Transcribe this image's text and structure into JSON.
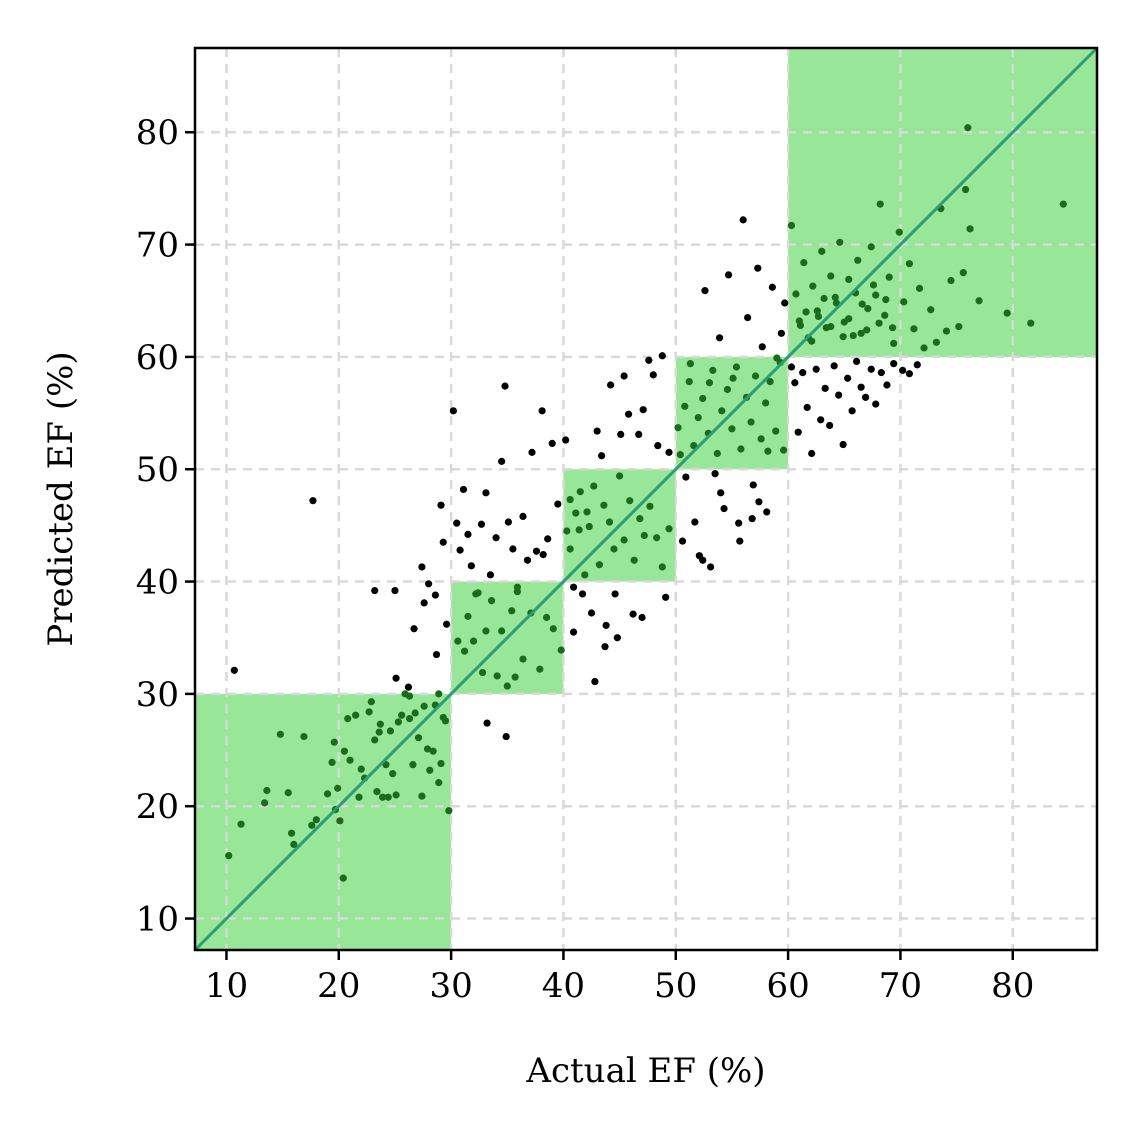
{
  "chart_data": {
    "type": "scatter",
    "xlabel": "Actual EF (%)",
    "ylabel": "Predicted EF (%)",
    "xlim": [
      7.2,
      87.5
    ],
    "ylim": [
      7.2,
      87.5
    ],
    "xticks": [
      10,
      20,
      30,
      40,
      50,
      60,
      70,
      80
    ],
    "yticks": [
      10,
      20,
      30,
      40,
      50,
      60,
      70,
      80
    ],
    "grid": true,
    "identity_line": {
      "color": "#2a9d78"
    },
    "regions": [
      {
        "x0": 7.2,
        "x1": 30,
        "y0": 7.2,
        "y1": 30
      },
      {
        "x0": 30,
        "x1": 40,
        "y0": 30,
        "y1": 40
      },
      {
        "x0": 40,
        "x1": 50,
        "y0": 40,
        "y1": 50
      },
      {
        "x0": 50,
        "x1": 60,
        "y0": 50,
        "y1": 60
      },
      {
        "x0": 60,
        "x1": 87.5,
        "y0": 60,
        "y1": 87.5
      }
    ],
    "colors": {
      "region_fill": "#98e698",
      "point_inside": "#1a6b1a",
      "point_outside": "#000000",
      "grid": "#d9d9d9",
      "identity": "#2a9d78"
    },
    "points": [
      [
        10.2,
        15.6
      ],
      [
        10.7,
        32.1
      ],
      [
        11.3,
        18.4
      ],
      [
        13.4,
        20.3
      ],
      [
        13.6,
        21.4
      ],
      [
        14.8,
        26.4
      ],
      [
        15.5,
        21.2
      ],
      [
        15.8,
        17.6
      ],
      [
        16.0,
        16.6
      ],
      [
        16.9,
        26.2
      ],
      [
        17.6,
        18.3
      ],
      [
        17.7,
        47.2
      ],
      [
        18.0,
        18.8
      ],
      [
        19.0,
        21.1
      ],
      [
        19.4,
        23.9
      ],
      [
        19.6,
        25.7
      ],
      [
        19.7,
        19.7
      ],
      [
        19.9,
        21.6
      ],
      [
        20.1,
        18.7
      ],
      [
        20.4,
        13.6
      ],
      [
        20.5,
        24.9
      ],
      [
        20.8,
        27.8
      ],
      [
        21.0,
        24.1
      ],
      [
        21.5,
        28.1
      ],
      [
        21.8,
        20.8
      ],
      [
        22.0,
        23.3
      ],
      [
        22.3,
        22.5
      ],
      [
        22.7,
        28.4
      ],
      [
        22.9,
        29.3
      ],
      [
        23.2,
        25.9
      ],
      [
        23.4,
        21.3
      ],
      [
        23.6,
        26.6
      ],
      [
        23.7,
        27.3
      ],
      [
        23.9,
        20.8
      ],
      [
        24.2,
        23.7
      ],
      [
        24.4,
        20.8
      ],
      [
        24.6,
        26.7
      ],
      [
        24.8,
        22.9
      ],
      [
        25.1,
        21.0
      ],
      [
        25.3,
        27.5
      ],
      [
        25.6,
        28.1
      ],
      [
        25.9,
        30.0
      ],
      [
        26.2,
        30.6
      ],
      [
        26.3,
        27.8
      ],
      [
        26.6,
        23.7
      ],
      [
        26.8,
        28.3
      ],
      [
        27.1,
        26.1
      ],
      [
        27.4,
        20.9
      ],
      [
        27.6,
        28.9
      ],
      [
        27.9,
        25.1
      ],
      [
        28.1,
        23.2
      ],
      [
        28.4,
        24.9
      ],
      [
        28.6,
        29.0
      ],
      [
        28.9,
        22.1
      ],
      [
        29.1,
        23.8
      ],
      [
        29.5,
        27.6
      ],
      [
        29.8,
        19.6
      ],
      [
        23.2,
        39.2
      ],
      [
        25.0,
        39.2
      ],
      [
        25.1,
        31.4
      ],
      [
        26.3,
        29.8
      ],
      [
        26.7,
        35.8
      ],
      [
        27.4,
        41.3
      ],
      [
        27.6,
        38.1
      ],
      [
        28.0,
        39.8
      ],
      [
        28.6,
        38.8
      ],
      [
        29.1,
        46.8
      ],
      [
        29.3,
        43.5
      ],
      [
        29.6,
        36.2
      ],
      [
        30.2,
        55.2
      ],
      [
        30.5,
        45.2
      ],
      [
        30.8,
        42.8
      ],
      [
        31.1,
        48.2
      ],
      [
        31.5,
        44.2
      ],
      [
        31.8,
        41.4
      ],
      [
        32.2,
        38.9
      ],
      [
        32.7,
        45.1
      ],
      [
        33.1,
        47.9
      ],
      [
        33.5,
        40.6
      ],
      [
        34.0,
        43.9
      ],
      [
        34.5,
        50.7
      ],
      [
        34.8,
        57.4
      ],
      [
        35.1,
        45.3
      ],
      [
        35.5,
        42.9
      ],
      [
        35.9,
        39.1
      ],
      [
        36.4,
        45.8
      ],
      [
        36.8,
        41.9
      ],
      [
        37.2,
        51.5
      ],
      [
        37.6,
        42.7
      ],
      [
        38.1,
        55.2
      ],
      [
        38.6,
        43.8
      ],
      [
        39.0,
        52.3
      ],
      [
        39.5,
        46.9
      ],
      [
        28.7,
        33.5
      ],
      [
        28.9,
        30.0
      ],
      [
        29.3,
        27.9
      ],
      [
        30.6,
        34.7
      ],
      [
        31.2,
        33.8
      ],
      [
        31.5,
        36.9
      ],
      [
        32.0,
        34.7
      ],
      [
        32.4,
        39.0
      ],
      [
        32.8,
        31.9
      ],
      [
        33.1,
        35.6
      ],
      [
        33.6,
        38.3
      ],
      [
        34.1,
        31.6
      ],
      [
        34.5,
        35.6
      ],
      [
        35.0,
        30.7
      ],
      [
        35.4,
        37.4
      ],
      [
        35.9,
        39.5
      ],
      [
        36.4,
        33.1
      ],
      [
        37.1,
        37.2
      ],
      [
        37.9,
        32.2
      ],
      [
        38.5,
        36.8
      ],
      [
        39.1,
        35.8
      ],
      [
        34.9,
        26.2
      ],
      [
        33.2,
        27.4
      ],
      [
        35.7,
        31.5
      ],
      [
        38.2,
        42.4
      ],
      [
        40.2,
        52.6
      ],
      [
        40.6,
        47.3
      ],
      [
        40.9,
        39.5
      ],
      [
        41.4,
        44.6
      ],
      [
        41.7,
        38.9
      ],
      [
        42.1,
        46.2
      ],
      [
        42.5,
        37.2
      ],
      [
        43.0,
        53.4
      ],
      [
        43.4,
        51.2
      ],
      [
        43.8,
        36.1
      ],
      [
        44.2,
        57.5
      ],
      [
        44.6,
        38.9
      ],
      [
        45.1,
        53.1
      ],
      [
        45.4,
        58.3
      ],
      [
        45.8,
        54.9
      ],
      [
        46.2,
        37.1
      ],
      [
        46.7,
        53.1
      ],
      [
        47.1,
        55.3
      ],
      [
        47.6,
        59.7
      ],
      [
        48.0,
        58.4
      ],
      [
        48.4,
        52.1
      ],
      [
        48.8,
        60.1
      ],
      [
        49.1,
        38.6
      ],
      [
        49.4,
        51.5
      ],
      [
        40.3,
        44.5
      ],
      [
        40.6,
        42.9
      ],
      [
        41.1,
        46.1
      ],
      [
        41.5,
        48.0
      ],
      [
        41.9,
        40.6
      ],
      [
        42.3,
        44.9
      ],
      [
        42.7,
        48.5
      ],
      [
        43.2,
        41.5
      ],
      [
        43.6,
        46.8
      ],
      [
        44.1,
        45.3
      ],
      [
        44.5,
        42.9
      ],
      [
        45.0,
        49.4
      ],
      [
        45.4,
        43.7
      ],
      [
        45.9,
        47.2
      ],
      [
        46.3,
        41.9
      ],
      [
        46.8,
        45.6
      ],
      [
        47.2,
        44.1
      ],
      [
        47.7,
        46.7
      ],
      [
        48.3,
        43.9
      ],
      [
        48.8,
        41.3
      ],
      [
        49.4,
        44.7
      ],
      [
        42.8,
        31.1
      ],
      [
        43.7,
        34.2
      ],
      [
        44.8,
        35.0
      ],
      [
        47.0,
        36.8
      ],
      [
        39.8,
        33.9
      ],
      [
        40.9,
        35.5
      ],
      [
        50.2,
        53.7
      ],
      [
        50.6,
        43.6
      ],
      [
        50.9,
        49.3
      ],
      [
        51.3,
        59.4
      ],
      [
        51.7,
        45.3
      ],
      [
        52.1,
        42.3
      ],
      [
        52.6,
        65.9
      ],
      [
        53.0,
        57.7
      ],
      [
        53.5,
        49.6
      ],
      [
        53.9,
        61.7
      ],
      [
        54.3,
        46.5
      ],
      [
        54.7,
        67.3
      ],
      [
        55.1,
        58.1
      ],
      [
        55.6,
        45.2
      ],
      [
        56.0,
        72.2
      ],
      [
        56.4,
        63.5
      ],
      [
        56.9,
        48.6
      ],
      [
        57.3,
        67.9
      ],
      [
        57.7,
        60.9
      ],
      [
        58.1,
        46.2
      ],
      [
        58.6,
        66.2
      ],
      [
        59.0,
        59.9
      ],
      [
        59.4,
        62.1
      ],
      [
        59.7,
        64.8
      ],
      [
        52.4,
        41.9
      ],
      [
        53.1,
        41.3
      ],
      [
        54.0,
        47.9
      ],
      [
        55.7,
        43.6
      ],
      [
        56.8,
        45.6
      ],
      [
        57.4,
        47.1
      ],
      [
        58.2,
        51.6
      ],
      [
        50.4,
        51.3
      ],
      [
        50.8,
        55.6
      ],
      [
        51.2,
        57.8
      ],
      [
        51.6,
        52.1
      ],
      [
        52.0,
        54.6
      ],
      [
        52.4,
        56.3
      ],
      [
        52.9,
        53.2
      ],
      [
        53.3,
        58.8
      ],
      [
        53.7,
        51.4
      ],
      [
        54.1,
        55.2
      ],
      [
        54.6,
        57.1
      ],
      [
        55.0,
        53.6
      ],
      [
        55.4,
        59.1
      ],
      [
        55.8,
        51.8
      ],
      [
        56.3,
        56.4
      ],
      [
        56.7,
        54.2
      ],
      [
        57.1,
        58.3
      ],
      [
        57.6,
        52.7
      ],
      [
        58.0,
        55.9
      ],
      [
        58.4,
        57.8
      ],
      [
        58.9,
        53.4
      ],
      [
        59.3,
        59.5
      ],
      [
        59.6,
        51.7
      ],
      [
        60.3,
        59.1
      ],
      [
        60.6,
        57.7
      ],
      [
        60.9,
        53.3
      ],
      [
        61.3,
        58.6
      ],
      [
        61.7,
        55.5
      ],
      [
        62.1,
        51.4
      ],
      [
        62.5,
        58.9
      ],
      [
        62.9,
        54.4
      ],
      [
        63.3,
        57.2
      ],
      [
        63.7,
        53.9
      ],
      [
        64.1,
        59.2
      ],
      [
        64.5,
        56.6
      ],
      [
        64.9,
        52.2
      ],
      [
        65.3,
        58.1
      ],
      [
        65.7,
        55.2
      ],
      [
        66.1,
        59.6
      ],
      [
        66.5,
        57.3
      ],
      [
        66.9,
        56.4
      ],
      [
        67.4,
        58.9
      ],
      [
        67.8,
        55.8
      ],
      [
        68.3,
        58.6
      ],
      [
        68.8,
        57.5
      ],
      [
        69.4,
        59.4
      ],
      [
        70.2,
        58.8
      ],
      [
        70.8,
        58.5
      ],
      [
        71.5,
        59.3
      ],
      [
        60.3,
        71.7
      ],
      [
        60.7,
        65.6
      ],
      [
        61.0,
        63.2
      ],
      [
        61.4,
        68.4
      ],
      [
        61.8,
        61.7
      ],
      [
        62.2,
        66.3
      ],
      [
        62.6,
        64.1
      ],
      [
        63.0,
        69.4
      ],
      [
        63.4,
        62.6
      ],
      [
        63.8,
        67.2
      ],
      [
        64.2,
        65.3
      ],
      [
        64.6,
        70.2
      ],
      [
        65.0,
        63.1
      ],
      [
        65.4,
        66.9
      ],
      [
        65.8,
        61.9
      ],
      [
        66.2,
        68.6
      ],
      [
        66.6,
        64.7
      ],
      [
        67.0,
        62.4
      ],
      [
        67.4,
        69.8
      ],
      [
        67.8,
        65.5
      ],
      [
        68.2,
        73.6
      ],
      [
        68.6,
        63.7
      ],
      [
        69.0,
        67.1
      ],
      [
        69.4,
        61.2
      ],
      [
        69.9,
        71.1
      ],
      [
        70.3,
        64.9
      ],
      [
        70.8,
        68.3
      ],
      [
        71.2,
        62.5
      ],
      [
        71.7,
        66.1
      ],
      [
        72.1,
        60.8
      ],
      [
        72.7,
        64.2
      ],
      [
        73.2,
        61.3
      ],
      [
        73.6,
        73.2
      ],
      [
        74.1,
        62.3
      ],
      [
        74.5,
        66.8
      ],
      [
        75.2,
        62.7
      ],
      [
        75.6,
        67.5
      ],
      [
        75.8,
        74.9
      ],
      [
        76.0,
        80.4
      ],
      [
        76.2,
        71.4
      ],
      [
        77.0,
        65.0
      ],
      [
        79.5,
        63.9
      ],
      [
        81.6,
        63.0
      ],
      [
        84.5,
        73.6
      ],
      [
        61.1,
        62.8
      ],
      [
        61.6,
        64.0
      ],
      [
        62.1,
        61.4
      ],
      [
        62.7,
        63.6
      ],
      [
        63.2,
        65.2
      ],
      [
        63.8,
        62.7
      ],
      [
        64.3,
        64.8
      ],
      [
        64.9,
        61.8
      ],
      [
        65.4,
        63.4
      ],
      [
        66.0,
        65.7
      ],
      [
        66.5,
        62.1
      ],
      [
        67.1,
        64.3
      ],
      [
        67.6,
        66.4
      ],
      [
        68.1,
        63.0
      ],
      [
        68.7,
        65.1
      ],
      [
        69.3,
        62.6
      ]
    ]
  }
}
